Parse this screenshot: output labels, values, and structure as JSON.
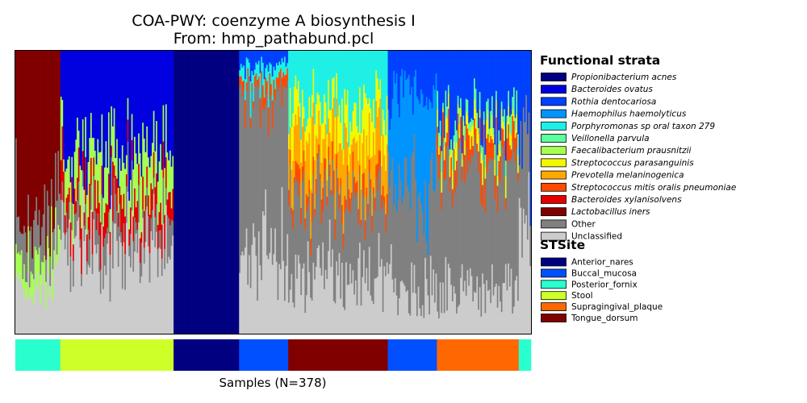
{
  "chart_data": {
    "type": "bar",
    "stacked": true,
    "normalized": true,
    "title": "COA-PWY: coenzyme A biosynthesis I",
    "subtitle": "From: hmp_pathabund.pcl",
    "xlabel": "Samples (N=378)",
    "ylabel": "",
    "n_samples": 378,
    "ylim": [
      0,
      1
    ],
    "strata_legend_title": "Functional strata",
    "strata": [
      {
        "name": "Propionibacterium acnes",
        "color": "#000080",
        "italic": true
      },
      {
        "name": "Bacteroides ovatus",
        "color": "#0000e0",
        "italic": true
      },
      {
        "name": "Rothia dentocariosa",
        "color": "#0040ff",
        "italic": true
      },
      {
        "name": "Haemophilus haemolyticus",
        "color": "#0094ff",
        "italic": true
      },
      {
        "name": "Porphyromonas sp oral taxon 279",
        "color": "#1ef0e6",
        "italic": true
      },
      {
        "name": "Veillonella parvula",
        "color": "#5cff9b",
        "italic": true
      },
      {
        "name": "Faecalibacterium prausnitzii",
        "color": "#a6ff52",
        "italic": true
      },
      {
        "name": "Streptococcus parasanguinis",
        "color": "#f4f802",
        "italic": true
      },
      {
        "name": "Prevotella melaninogenica",
        "color": "#ffa800",
        "italic": true
      },
      {
        "name": "Streptococcus mitis oralis pneumoniae",
        "color": "#ff4a00",
        "italic": true
      },
      {
        "name": "Bacteroides xylanisolvens",
        "color": "#e30000",
        "italic": true
      },
      {
        "name": "Lactobacillus iners",
        "color": "#800000",
        "italic": true
      },
      {
        "name": "Other",
        "color": "#808080",
        "italic": false
      },
      {
        "name": "Unclassified",
        "color": "#cccccc",
        "italic": false
      }
    ],
    "site_legend_title": "STSite",
    "sites": [
      {
        "name": "Anterior_nares",
        "color": "#000080"
      },
      {
        "name": "Buccal_mucosa",
        "color": "#0050ff"
      },
      {
        "name": "Posterior_fornix",
        "color": "#29ffce"
      },
      {
        "name": "Stool",
        "color": "#ceff29"
      },
      {
        "name": "Supragingival_plaque",
        "color": "#ff6800"
      },
      {
        "name": "Tongue_dorsum",
        "color": "#800000"
      }
    ],
    "sample_groups": [
      {
        "site": "Posterior_fornix",
        "count": 33,
        "profile": [
          [
            "Lactobacillus iners",
            0.55
          ],
          [
            "Other",
            0.15
          ],
          [
            "Faecalibacterium prausnitzii",
            0.1
          ],
          [
            "Unclassified",
            0.2
          ]
        ]
      },
      {
        "site": "Stool",
        "count": 83,
        "profile": [
          [
            "Bacteroides ovatus",
            0.35
          ],
          [
            "Faecalibacterium prausnitzii",
            0.15
          ],
          [
            "Bacteroides xylanisolvens",
            0.1
          ],
          [
            "Other",
            0.1
          ],
          [
            "Unclassified",
            0.3
          ]
        ]
      },
      {
        "site": "Anterior_nares",
        "count": 48,
        "profile": [
          [
            "Propionibacterium acnes",
            1.0
          ]
        ]
      },
      {
        "site": "Buccal_mucosa",
        "count": 36,
        "profile": [
          [
            "Rothia dentocariosa",
            0.05
          ],
          [
            "Porphyromonas sp oral taxon 279",
            0.05
          ],
          [
            "Streptococcus mitis oralis pneumoniae",
            0.05
          ],
          [
            "Other",
            0.6
          ],
          [
            "Unclassified",
            0.25
          ]
        ]
      },
      {
        "site": "Tongue_dorsum",
        "count": 73,
        "profile": [
          [
            "Porphyromonas sp oral taxon 279",
            0.2
          ],
          [
            "Streptococcus parasanguinis",
            0.12
          ],
          [
            "Prevotella melaninogenica",
            0.15
          ],
          [
            "Streptococcus mitis oralis pneumoniae",
            0.05
          ],
          [
            "Other",
            0.28
          ],
          [
            "Unclassified",
            0.2
          ]
        ]
      },
      {
        "site": "Buccal_mucosa",
        "count": 36,
        "profile": [
          [
            "Rothia dentocariosa",
            0.15
          ],
          [
            "Haemophilus haemolyticus",
            0.35
          ],
          [
            "Other",
            0.35
          ],
          [
            "Unclassified",
            0.15
          ]
        ]
      },
      {
        "site": "Supragingival_plaque",
        "count": 60,
        "profile": [
          [
            "Rothia dentocariosa",
            0.25
          ],
          [
            "Veillonella parvula",
            0.05
          ],
          [
            "Streptococcus parasanguinis",
            0.05
          ],
          [
            "Streptococcus mitis oralis pneumoniae",
            0.08
          ],
          [
            "Other",
            0.42
          ],
          [
            "Unclassified",
            0.15
          ]
        ]
      },
      {
        "site": "Posterior_fornix",
        "count": 9,
        "profile": [
          [
            "Rothia dentocariosa",
            0.4
          ],
          [
            "Other",
            0.3
          ],
          [
            "Unclassified",
            0.3
          ]
        ]
      }
    ]
  }
}
